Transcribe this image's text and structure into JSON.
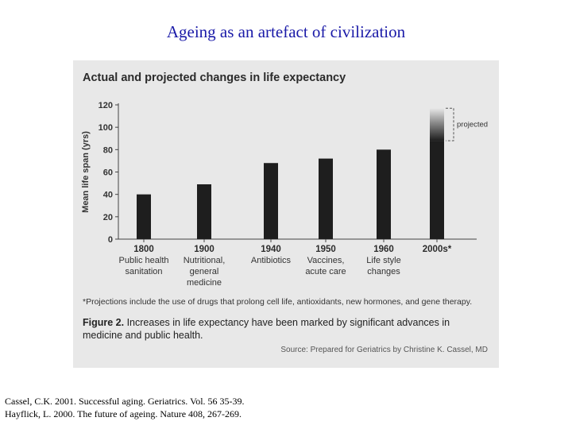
{
  "slide": {
    "title": "Ageing as an artefact of civilization"
  },
  "figure": {
    "footnote": "*Projections include the use of drugs that prolong cell life, antioxidants, new hormones, and gene therapy.",
    "caption_label": "Figure 2.",
    "caption_text": "Increases in life expectancy have been marked by significant advances in medicine and public health.",
    "source": "Source: Prepared for Geriatrics by Christine K. Cassel, MD"
  },
  "references": [
    "Cassel, C.K. 2001. Successful aging. Geriatrics. Vol. 56 35-39.",
    "Hayflick, L. 2000. The future of ageing. Nature 408, 267-269."
  ],
  "chart_data": {
    "type": "bar",
    "title": "Actual and projected changes in life expectancy",
    "xlabel": "",
    "ylabel": "Mean life span (yrs)",
    "ylim": [
      0,
      120
    ],
    "yticks": [
      0,
      20,
      40,
      60,
      80,
      100,
      120
    ],
    "grid": false,
    "categories": [
      "1800",
      "1900",
      "1940",
      "1950",
      "1960",
      "2000s*"
    ],
    "category_sublabels": [
      [
        "Public health",
        "sanitation"
      ],
      [
        "Nutritional,",
        "general",
        "medicine"
      ],
      [
        "Antibiotics"
      ],
      [
        "Vaccines,",
        "acute care"
      ],
      [
        "Life style",
        "changes"
      ],
      []
    ],
    "values": [
      40,
      49,
      68,
      72,
      80,
      88
    ],
    "projected": {
      "category": "2000s*",
      "from": 88,
      "to": 117,
      "label": "projected"
    },
    "colors": {
      "bar": "#1e1e1e",
      "axis": "#444444",
      "panel": "#e8e8e8"
    }
  }
}
